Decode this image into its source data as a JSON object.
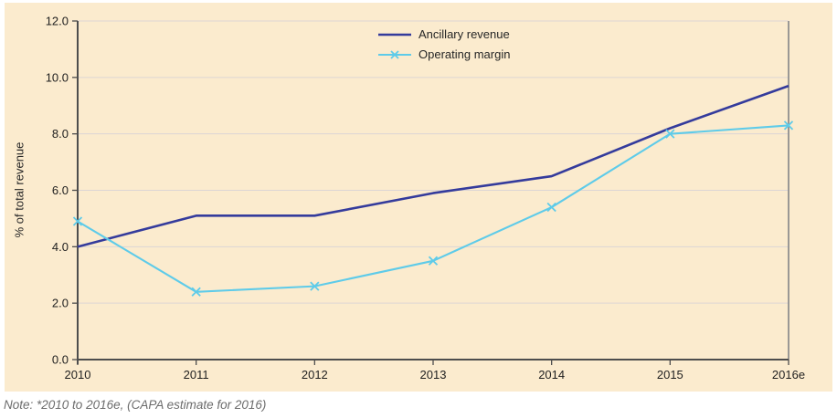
{
  "chart_data": {
    "type": "line",
    "title": "",
    "categories": [
      "2010",
      "2011",
      "2012",
      "2013",
      "2014",
      "2015",
      "2016e"
    ],
    "series": [
      {
        "name": "Ancillary revenue",
        "color": "#343b9c",
        "marker": "none",
        "line_width": 2.6,
        "values": [
          4.0,
          5.1,
          5.1,
          5.9,
          6.5,
          8.2,
          9.7
        ]
      },
      {
        "name": "Operating margin",
        "color": "#5ecbe9",
        "marker": "x",
        "line_width": 2.1,
        "values": [
          4.9,
          2.4,
          2.6,
          3.5,
          5.4,
          8.0,
          8.3
        ]
      }
    ],
    "xlabel": "",
    "ylabel": "% of total revenue",
    "ylim": [
      0,
      12
    ],
    "y_ticks": [
      "0.0",
      "2.0",
      "4.0",
      "6.0",
      "8.0",
      "10.0",
      "12.0"
    ],
    "grid": true,
    "legend_position": "top-center",
    "plot_background": "#fbebce"
  },
  "note": "Note: *2010 to 2016e, (CAPA estimate for 2016)",
  "colors": {
    "canvas_bg": "#fbebce",
    "page_bg": "#ffffff",
    "axis": "#4d4d4d",
    "gridline": "#dcd5d4",
    "right_border": "#8f8f8f",
    "tick_label": "#1f1f1f",
    "note_text": "#6c6c6c"
  }
}
